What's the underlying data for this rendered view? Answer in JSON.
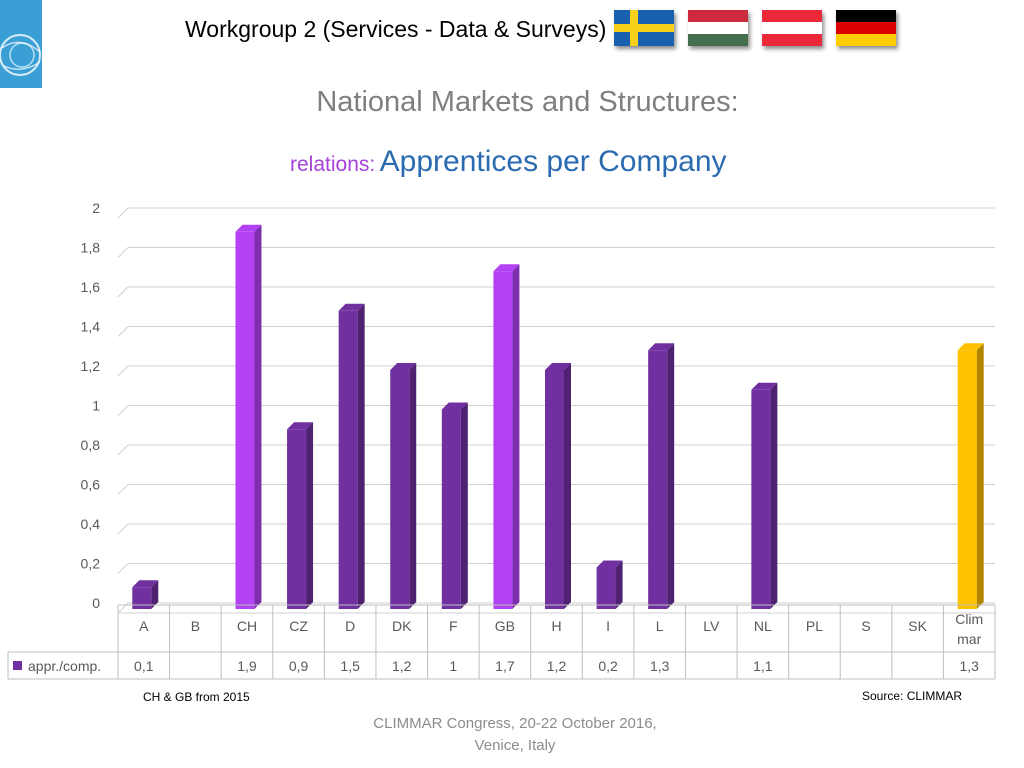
{
  "header": {
    "title": "Workgroup 2 (Services - Data & Surveys)",
    "flags": [
      {
        "name": "sweden-flag"
      },
      {
        "name": "hungary-flag"
      },
      {
        "name": "austria-flag"
      },
      {
        "name": "germany-flag"
      }
    ]
  },
  "main_title": "National Markets and Structures:",
  "subtitle": {
    "prefix": "relations:",
    "main": "Apprentices per Company"
  },
  "notes": {
    "left": "CH & GB from 2015",
    "right": "Source: CLIMMAR"
  },
  "footer": {
    "line1": "CLIMMAR Congress, 20-22 October 2016,",
    "line2": "Venice, Italy"
  },
  "chart_data": {
    "type": "bar",
    "style": "3d-column-with-data-table",
    "categories": [
      "A",
      "B",
      "CH",
      "CZ",
      "D",
      "DK",
      "F",
      "GB",
      "H",
      "I",
      "L",
      "LV",
      "NL",
      "PL",
      "S",
      "SK",
      "Clim mar"
    ],
    "category_lines": [
      [
        "A"
      ],
      [
        "B"
      ],
      [
        "CH"
      ],
      [
        "CZ"
      ],
      [
        "D"
      ],
      [
        "DK"
      ],
      [
        "F"
      ],
      [
        "GB"
      ],
      [
        "H"
      ],
      [
        "I"
      ],
      [
        "L"
      ],
      [
        "LV"
      ],
      [
        "NL"
      ],
      [
        "PL"
      ],
      [
        "S"
      ],
      [
        "SK"
      ],
      [
        "Clim",
        "mar"
      ]
    ],
    "series": [
      {
        "name": "appr./comp.",
        "values": [
          0.1,
          null,
          1.9,
          0.9,
          1.5,
          1.2,
          1,
          1.7,
          1.2,
          0.2,
          1.3,
          null,
          1.1,
          null,
          null,
          null,
          1.3
        ],
        "labels": [
          "0,1",
          "",
          "1,9",
          "0,9",
          "1,5",
          "1,2",
          "1",
          "1,7",
          "1,2",
          "0,2",
          "1,3",
          "",
          "1,1",
          "",
          "",
          "",
          "1,3"
        ]
      }
    ],
    "ylim": [
      0,
      2
    ],
    "yticks": [
      0,
      0.2,
      0.4,
      0.6,
      0.8,
      1,
      1.2,
      1.4,
      1.6,
      1.8,
      2
    ],
    "ytick_labels": [
      "0",
      "0,2",
      "0,4",
      "0,6",
      "0,8",
      "1",
      "1,2",
      "1,4",
      "1,6",
      "1,8",
      "2"
    ],
    "grid": true,
    "colors": {
      "default": "#7030a0",
      "highlight": "#b342f5",
      "total": "#ffc000",
      "legend": "#7030a0"
    },
    "highlight_categories": [
      "CH",
      "GB"
    ],
    "total_category": "Clim mar"
  }
}
